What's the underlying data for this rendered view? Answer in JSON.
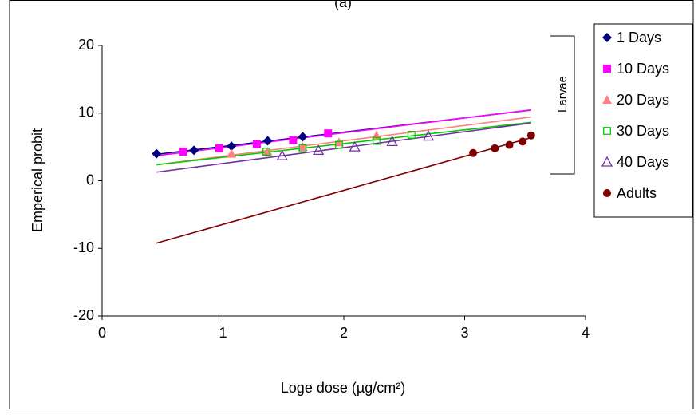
{
  "chart_data": {
    "type": "scatter",
    "title": "(a)",
    "x_label": "Loge dose (µg/cm²)",
    "y_label": "Emperical probit",
    "xlim": [
      0,
      4
    ],
    "xticks": [
      0,
      1,
      2,
      3,
      4
    ],
    "ylim": [
      -20,
      20
    ],
    "yticks": [
      -20,
      -10,
      0,
      10,
      20
    ],
    "grid": false,
    "legend": "right",
    "trendline": "linear",
    "annotations": [
      "Larvae"
    ],
    "series": [
      {
        "name": "1 Days",
        "color": "#000080",
        "marker": "diamond",
        "x": [
          0.45,
          0.76,
          1.07,
          1.37,
          1.66
        ],
        "values": [
          4.0,
          4.5,
          5.1,
          5.9,
          6.5
        ]
      },
      {
        "name": "10 Days",
        "color": "#ff00ff",
        "marker": "square",
        "x": [
          0.67,
          0.97,
          1.28,
          1.58,
          1.87
        ],
        "values": [
          4.3,
          4.8,
          5.4,
          6.0,
          7.0
        ]
      },
      {
        "name": "20 Days",
        "color": "#ff8080",
        "marker": "triangle",
        "x": [
          1.07,
          1.37,
          1.66,
          1.96,
          2.27
        ],
        "values": [
          4.0,
          4.3,
          5.0,
          5.7,
          6.7
        ]
      },
      {
        "name": "30 Days",
        "color": "#00cc00",
        "marker": "square-open",
        "x": [
          1.36,
          1.66,
          1.96,
          2.27,
          2.56
        ],
        "values": [
          4.3,
          4.8,
          5.3,
          5.9,
          6.8
        ]
      },
      {
        "name": "40 Days",
        "color": "#7030a0",
        "marker": "triangle-open",
        "x": [
          1.49,
          1.79,
          2.09,
          2.4,
          2.7
        ],
        "values": [
          3.7,
          4.5,
          5.0,
          5.8,
          6.6
        ]
      },
      {
        "name": "Adults",
        "color": "#800000",
        "marker": "circle",
        "x": [
          3.07,
          3.25,
          3.37,
          3.48,
          3.55
        ],
        "values": [
          4.1,
          4.8,
          5.3,
          5.8,
          6.7
        ]
      }
    ]
  }
}
